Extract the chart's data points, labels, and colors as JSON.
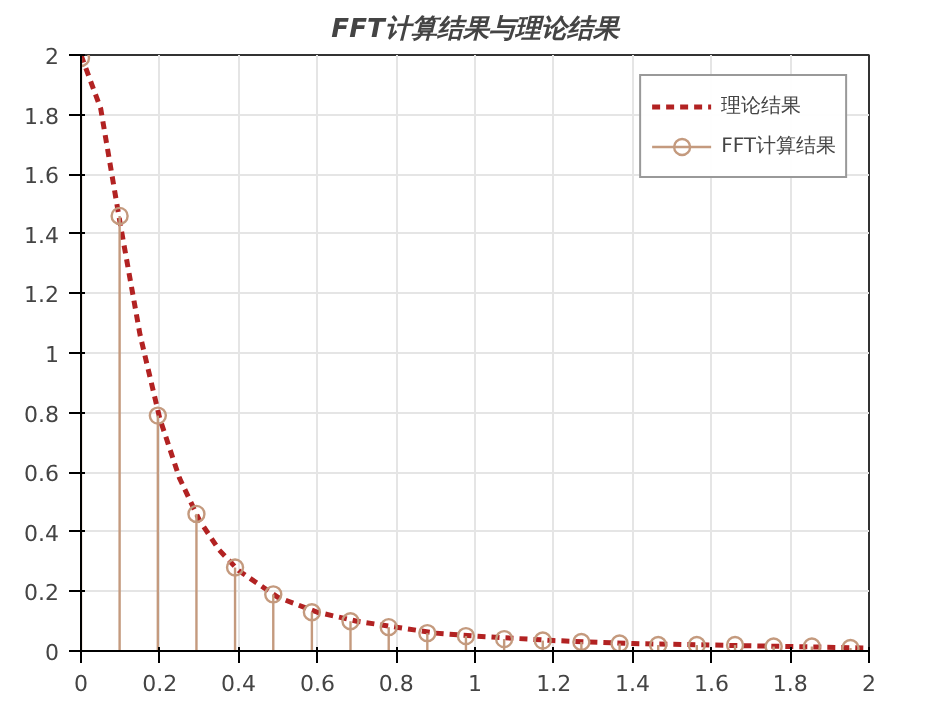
{
  "chart_data": {
    "type": "line",
    "title": "FFT计算结果与理论结果",
    "xlim": [
      0,
      2
    ],
    "ylim": [
      0,
      2
    ],
    "xticks": [
      0,
      0.2,
      0.4,
      0.6,
      0.8,
      1,
      1.2,
      1.4,
      1.6,
      1.8,
      2
    ],
    "yticks": [
      0,
      0.2,
      0.4,
      0.6,
      0.8,
      1,
      1.2,
      1.4,
      1.6,
      1.8,
      2
    ],
    "grid": true,
    "legend": "top right",
    "series": [
      {
        "name": "理论结果",
        "line_style": "dashed",
        "marker": "none",
        "color": "#b22222",
        "x": [
          0,
          0.05,
          0.1,
          0.15,
          0.2,
          0.25,
          0.3,
          0.35,
          0.4,
          0.5,
          0.6,
          0.7,
          0.8,
          0.9,
          1,
          1.2,
          1.4,
          1.6,
          1.8,
          2
        ],
        "values": [
          2,
          1.82,
          1.43,
          1.06,
          0.78,
          0.58,
          0.44,
          0.34,
          0.27,
          0.18,
          0.13,
          0.1,
          0.08,
          0.06,
          0.05,
          0.035,
          0.025,
          0.02,
          0.015,
          0.01
        ]
      },
      {
        "name": "FFT计算结果",
        "type": "lollipop",
        "marker": "circle",
        "color": "#c49a7e",
        "x": [
          0,
          0.098,
          0.195,
          0.293,
          0.391,
          0.488,
          0.586,
          0.684,
          0.781,
          0.879,
          0.977,
          1.074,
          1.172,
          1.27,
          1.367,
          1.465,
          1.563,
          1.66,
          1.758,
          1.855,
          1.953
        ],
        "values": [
          1.99,
          1.46,
          0.79,
          0.46,
          0.28,
          0.19,
          0.13,
          0.1,
          0.08,
          0.06,
          0.05,
          0.04,
          0.035,
          0.03,
          0.025,
          0.02,
          0.02,
          0.02,
          0.015,
          0.015,
          0.01
        ]
      }
    ]
  }
}
